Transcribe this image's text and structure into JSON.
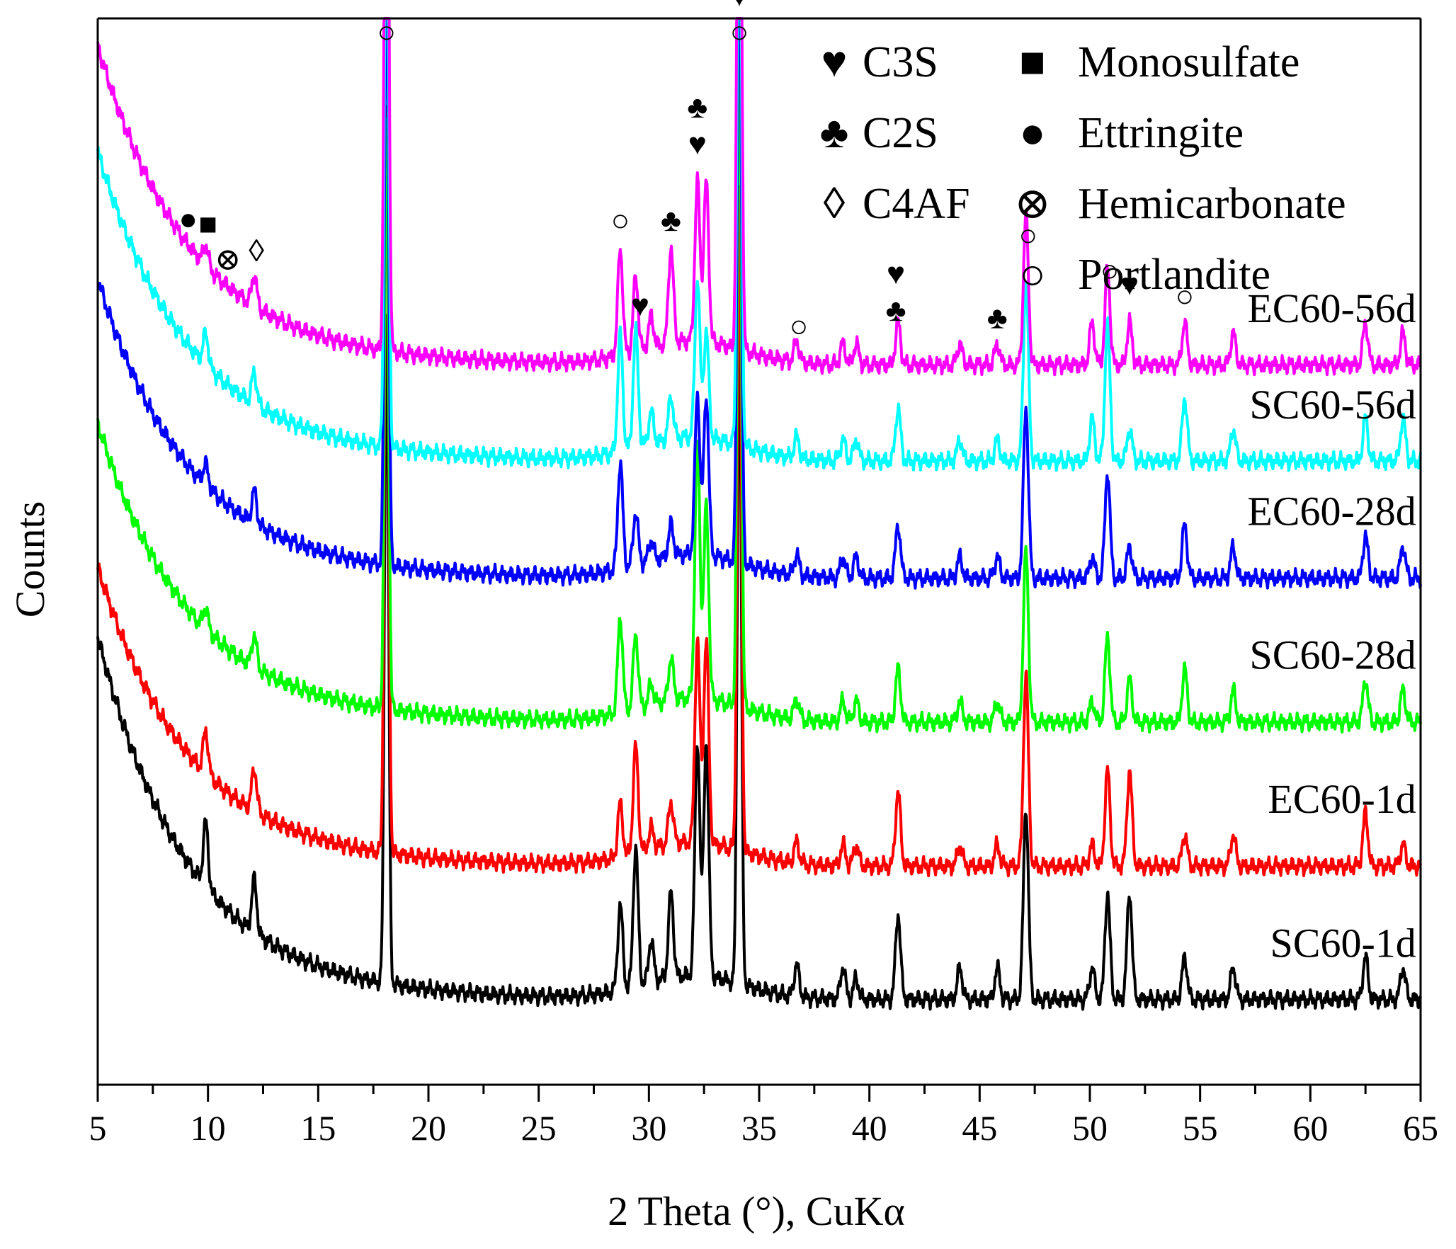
{
  "chart_data": {
    "type": "line",
    "title": "",
    "xlabel": "2 Theta (°), CuKα",
    "ylabel": "Counts",
    "xlim": [
      5,
      65
    ],
    "ylim": [
      0,
      100
    ],
    "x_ticks": [
      "5",
      "10",
      "15",
      "20",
      "25",
      "30",
      "35",
      "40",
      "45",
      "50",
      "55",
      "60",
      "65"
    ],
    "y_ticks_visible": false,
    "legend": {
      "placement": "top-right",
      "entries": [
        {
          "symbol": "♥",
          "label": "C3S"
        },
        {
          "symbol": "♣",
          "label": "C2S"
        },
        {
          "symbol": "◊",
          "label": "C4AF"
        },
        {
          "symbol": "■",
          "label": "Monosulfate"
        },
        {
          "symbol": "●",
          "label": "Ettringite"
        },
        {
          "symbol": "⊗",
          "label": "Hemicarbonate"
        },
        {
          "symbol": "○",
          "label": "Portlandite"
        }
      ]
    },
    "peak_positions": [
      9.9,
      12.1,
      18.1,
      28.7,
      29.4,
      30.1,
      31.0,
      32.2,
      32.6,
      34.1,
      36.7,
      38.8,
      39.4,
      41.3,
      44.1,
      45.8,
      47.1,
      50.1,
      50.8,
      51.8,
      54.3,
      56.5,
      62.5,
      64.2
    ],
    "series": [
      {
        "name": "SC60-1d",
        "color": "#000000",
        "offset": 0,
        "start": 42,
        "base": 8,
        "peak_heights": [
          6,
          5,
          63,
          8,
          13,
          4,
          8,
          22,
          22,
          62,
          3,
          3,
          2,
          8,
          3,
          3,
          18,
          3,
          10,
          10,
          4,
          3,
          4,
          3
        ]
      },
      {
        "name": "EC60-1d",
        "color": "#ff0000",
        "offset": 13.5,
        "start": 35,
        "base": 7,
        "peak_heights": [
          4,
          4,
          70,
          5,
          10,
          2,
          4,
          19,
          19,
          62,
          2,
          2,
          2,
          7,
          2,
          2,
          18,
          2,
          9,
          9,
          3,
          3,
          5,
          2
        ]
      },
      {
        "name": "SC60-28d",
        "color": "#00ff00",
        "offset": 27,
        "start": 35,
        "base": 7,
        "peak_heights": [
          2,
          3,
          55,
          9,
          7,
          2,
          4,
          24,
          18,
          66,
          2,
          2,
          2,
          5,
          2,
          2,
          16,
          2,
          8,
          4,
          5,
          3,
          4,
          3
        ]
      },
      {
        "name": "EC60-28d",
        "color": "#0000ff",
        "offset": 40.5,
        "start": 35,
        "base": 7,
        "peak_heights": [
          2,
          3,
          58,
          10,
          5,
          2,
          3,
          15,
          15,
          62,
          2,
          2,
          2,
          5,
          2,
          2,
          16,
          2,
          10,
          3,
          5,
          3,
          4,
          3
        ]
      },
      {
        "name": "SC60-56d",
        "color": "#00ffff",
        "offset": 50.5,
        "start": 37,
        "base": 8,
        "peak_heights": [
          3,
          3,
          60,
          11,
          11,
          3,
          4,
          15,
          10,
          64,
          2,
          2,
          2,
          5,
          2,
          2,
          17,
          4,
          13,
          3,
          6,
          3,
          4,
          4
        ]
      },
      {
        "name": "EC60-56d",
        "color": "#ff00ff",
        "offset": 59.5,
        "start": 38,
        "base": 8,
        "peak_heights": [
          2,
          3,
          73,
          10,
          7,
          3,
          9,
          15,
          15,
          77,
          2,
          2,
          2,
          4,
          2,
          2,
          14,
          4,
          9,
          4,
          4,
          3,
          4,
          3
        ]
      }
    ],
    "annotations": [
      {
        "symbol": "●",
        "x": 9.1
      },
      {
        "symbol": "■",
        "x": 10.0
      },
      {
        "symbol": "◊",
        "x": 12.2
      },
      {
        "symbol": "⊗",
        "x": 10.9
      },
      {
        "symbol": "○",
        "x": 18.1
      },
      {
        "symbol": "○",
        "x": 28.7
      },
      {
        "symbol": "♥",
        "x": 29.6
      },
      {
        "symbol": "♣",
        "x": 31.0
      },
      {
        "symbol": "♥",
        "x": 32.2
      },
      {
        "symbol": "♣",
        "x": 32.2
      },
      {
        "symbol": "○",
        "x": 34.1
      },
      {
        "symbol": "♥",
        "x": 34.1
      },
      {
        "symbol": "○",
        "x": 36.8
      },
      {
        "symbol": "♣",
        "x": 41.2
      },
      {
        "symbol": "♥",
        "x": 41.2
      },
      {
        "symbol": "♣",
        "x": 45.8
      },
      {
        "symbol": "○",
        "x": 47.2
      },
      {
        "symbol": "○",
        "x": 50.9
      },
      {
        "symbol": "♥",
        "x": 51.8
      },
      {
        "symbol": "○",
        "x": 54.3
      }
    ]
  }
}
